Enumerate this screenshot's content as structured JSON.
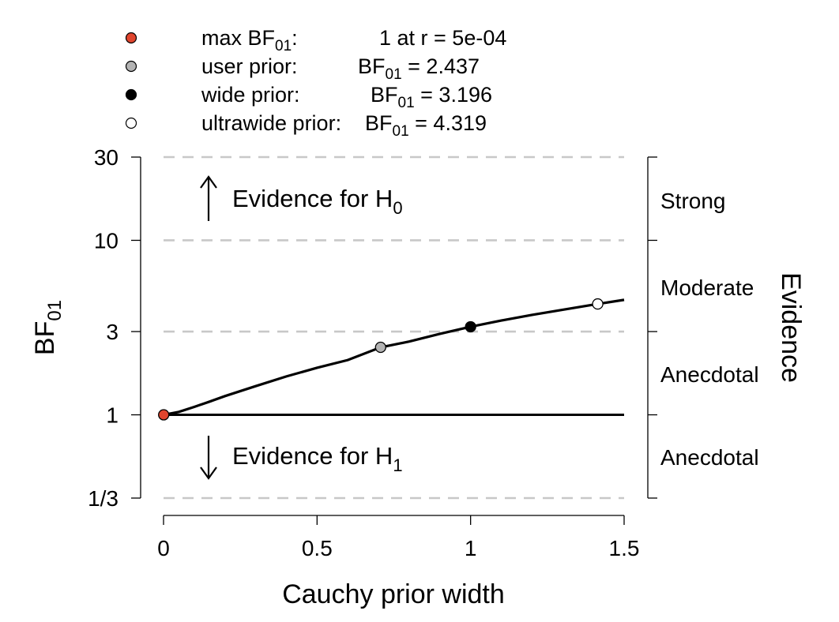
{
  "legend": [
    {
      "color": "#e0452e",
      "label_main": "max BF",
      "label_sub": "01",
      "label_suffix": ":",
      "value_text": "1 at r = 5e-04",
      "bf_prefix": "",
      "bf_sub": ""
    },
    {
      "color": "#b3b3b3",
      "label_main": "user prior:",
      "label_sub": "",
      "label_suffix": "",
      "value_text": " = 2.437",
      "bf_prefix": "BF",
      "bf_sub": "01"
    },
    {
      "color": "#000000",
      "label_main": "wide prior:",
      "label_sub": "",
      "label_suffix": "",
      "value_text": " = 3.196",
      "bf_prefix": "BF",
      "bf_sub": "01"
    },
    {
      "color": "#ffffff",
      "label_main": "ultrawide prior:",
      "label_sub": "",
      "label_suffix": "",
      "value_text": " = 4.319",
      "bf_prefix": "BF",
      "bf_sub": "01"
    }
  ],
  "annotations": {
    "h0_text": "Evidence for H",
    "h0_sub": "0",
    "h1_text": "Evidence for H",
    "h1_sub": "1"
  },
  "evidence_axis": {
    "title": "Evidence",
    "labels": [
      "Strong",
      "Moderate",
      "Anecdotal",
      "Anecdotal"
    ]
  },
  "chart_data": {
    "type": "line",
    "xlabel": "Cauchy prior width",
    "ylabel_main": "BF",
    "ylabel_sub": "01",
    "y_scale": "log",
    "xlim": [
      0,
      1.5
    ],
    "ylim": [
      0.3333,
      30
    ],
    "x_ticks": [
      0,
      0.5,
      1,
      1.5
    ],
    "x_tick_labels": [
      "0",
      "0.5",
      "1",
      "1.5"
    ],
    "y_ticks": [
      0.3333,
      1,
      3,
      10,
      30
    ],
    "y_tick_labels": [
      "1/3",
      "1",
      "3",
      "10",
      "30"
    ],
    "gridlines_dashed": [
      0.3333,
      3,
      10,
      30
    ],
    "reference_line": 1,
    "series": [
      {
        "x": [
          0,
          0.05,
          0.1,
          0.15,
          0.2,
          0.3,
          0.4,
          0.5,
          0.6,
          0.707,
          0.8,
          0.9,
          1.0,
          1.1,
          1.2,
          1.3,
          1.414,
          1.5
        ],
        "y": [
          1.0,
          1.04,
          1.11,
          1.19,
          1.28,
          1.46,
          1.66,
          1.86,
          2.06,
          2.437,
          2.63,
          2.91,
          3.196,
          3.47,
          3.74,
          4.0,
          4.319,
          4.56
        ]
      }
    ],
    "points": [
      {
        "x": 0.0005,
        "y": 1,
        "color": "#e0452e"
      },
      {
        "x": 0.707,
        "y": 2.437,
        "color": "#b3b3b3"
      },
      {
        "x": 1.0,
        "y": 3.196,
        "color": "#000000"
      },
      {
        "x": 1.414,
        "y": 4.319,
        "color": "#ffffff"
      }
    ]
  }
}
